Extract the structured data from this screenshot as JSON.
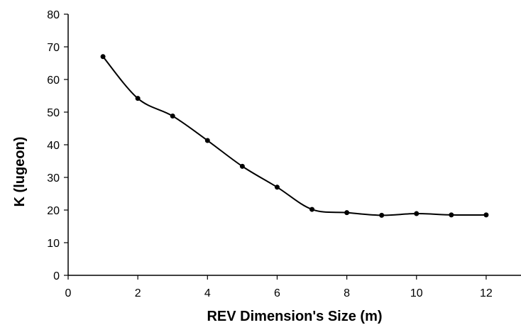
{
  "chart_data": {
    "type": "line",
    "title": "",
    "xlabel": "REV Dimension's Size (m)",
    "ylabel": "K (lugeon)",
    "xlim": [
      0,
      13
    ],
    "ylim": [
      0,
      80
    ],
    "x_ticks": [
      0,
      2,
      4,
      6,
      8,
      10,
      12
    ],
    "y_ticks": [
      0,
      10,
      20,
      30,
      40,
      50,
      60,
      70,
      80
    ],
    "grid": false,
    "legend": "none",
    "series": [
      {
        "x": [
          1,
          2,
          3,
          4,
          5,
          6,
          7,
          8,
          9,
          10,
          11,
          12
        ],
        "values": [
          67.0,
          54.2,
          48.8,
          41.3,
          33.4,
          27.0,
          20.2,
          19.2,
          18.4,
          18.9,
          18.5,
          18.5
        ],
        "color": "#000000",
        "marker": "circle",
        "smooth": true
      }
    ]
  }
}
